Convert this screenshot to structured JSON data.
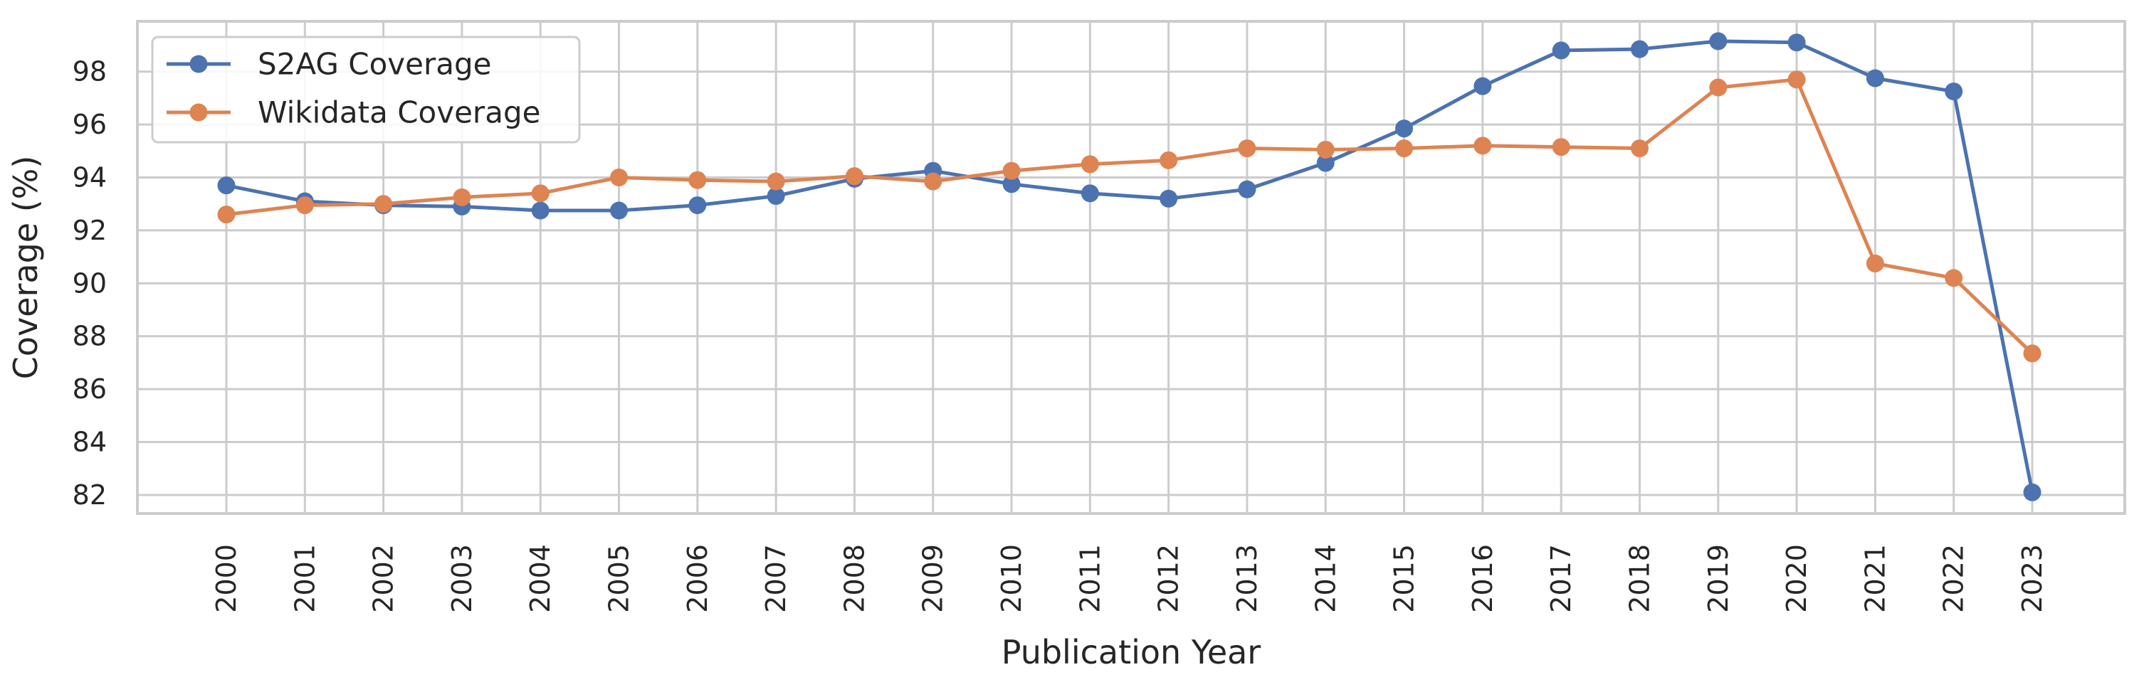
{
  "chart_data": {
    "type": "line",
    "title": "",
    "xlabel": "Publication Year",
    "ylabel": "Coverage (%)",
    "x": [
      2000,
      2001,
      2002,
      2003,
      2004,
      2005,
      2006,
      2007,
      2008,
      2009,
      2010,
      2011,
      2012,
      2013,
      2014,
      2015,
      2016,
      2017,
      2018,
      2019,
      2020,
      2021,
      2022,
      2023
    ],
    "xtick_labels": [
      "2000",
      "2001",
      "2002",
      "2003",
      "2004",
      "2005",
      "2006",
      "2007",
      "2008",
      "2009",
      "2010",
      "2011",
      "2012",
      "2013",
      "2014",
      "2015",
      "2016",
      "2017",
      "2018",
      "2019",
      "2020",
      "2021",
      "2022",
      "2023"
    ],
    "ylim": [
      81.3,
      99.9
    ],
    "yticks": [
      82,
      84,
      86,
      88,
      90,
      92,
      94,
      96,
      98
    ],
    "grid": true,
    "legend_position": "top-left",
    "series": [
      {
        "name": "S2AG Coverage",
        "color": "#4c72b0",
        "marker": "circle",
        "values": [
          93.7,
          93.1,
          92.95,
          92.9,
          92.75,
          92.75,
          92.95,
          93.3,
          93.95,
          94.25,
          93.75,
          93.4,
          93.2,
          93.55,
          94.55,
          95.85,
          97.45,
          98.8,
          98.85,
          99.15,
          99.1,
          97.75,
          97.25,
          82.1
        ]
      },
      {
        "name": "Wikidata Coverage",
        "color": "#dd8452",
        "marker": "circle",
        "values": [
          92.6,
          92.95,
          93.0,
          93.25,
          93.4,
          94.0,
          93.9,
          93.85,
          94.05,
          93.85,
          94.25,
          94.5,
          94.65,
          95.1,
          95.05,
          95.1,
          95.2,
          95.15,
          95.1,
          97.4,
          97.7,
          90.75,
          90.2,
          87.35
        ]
      }
    ]
  }
}
